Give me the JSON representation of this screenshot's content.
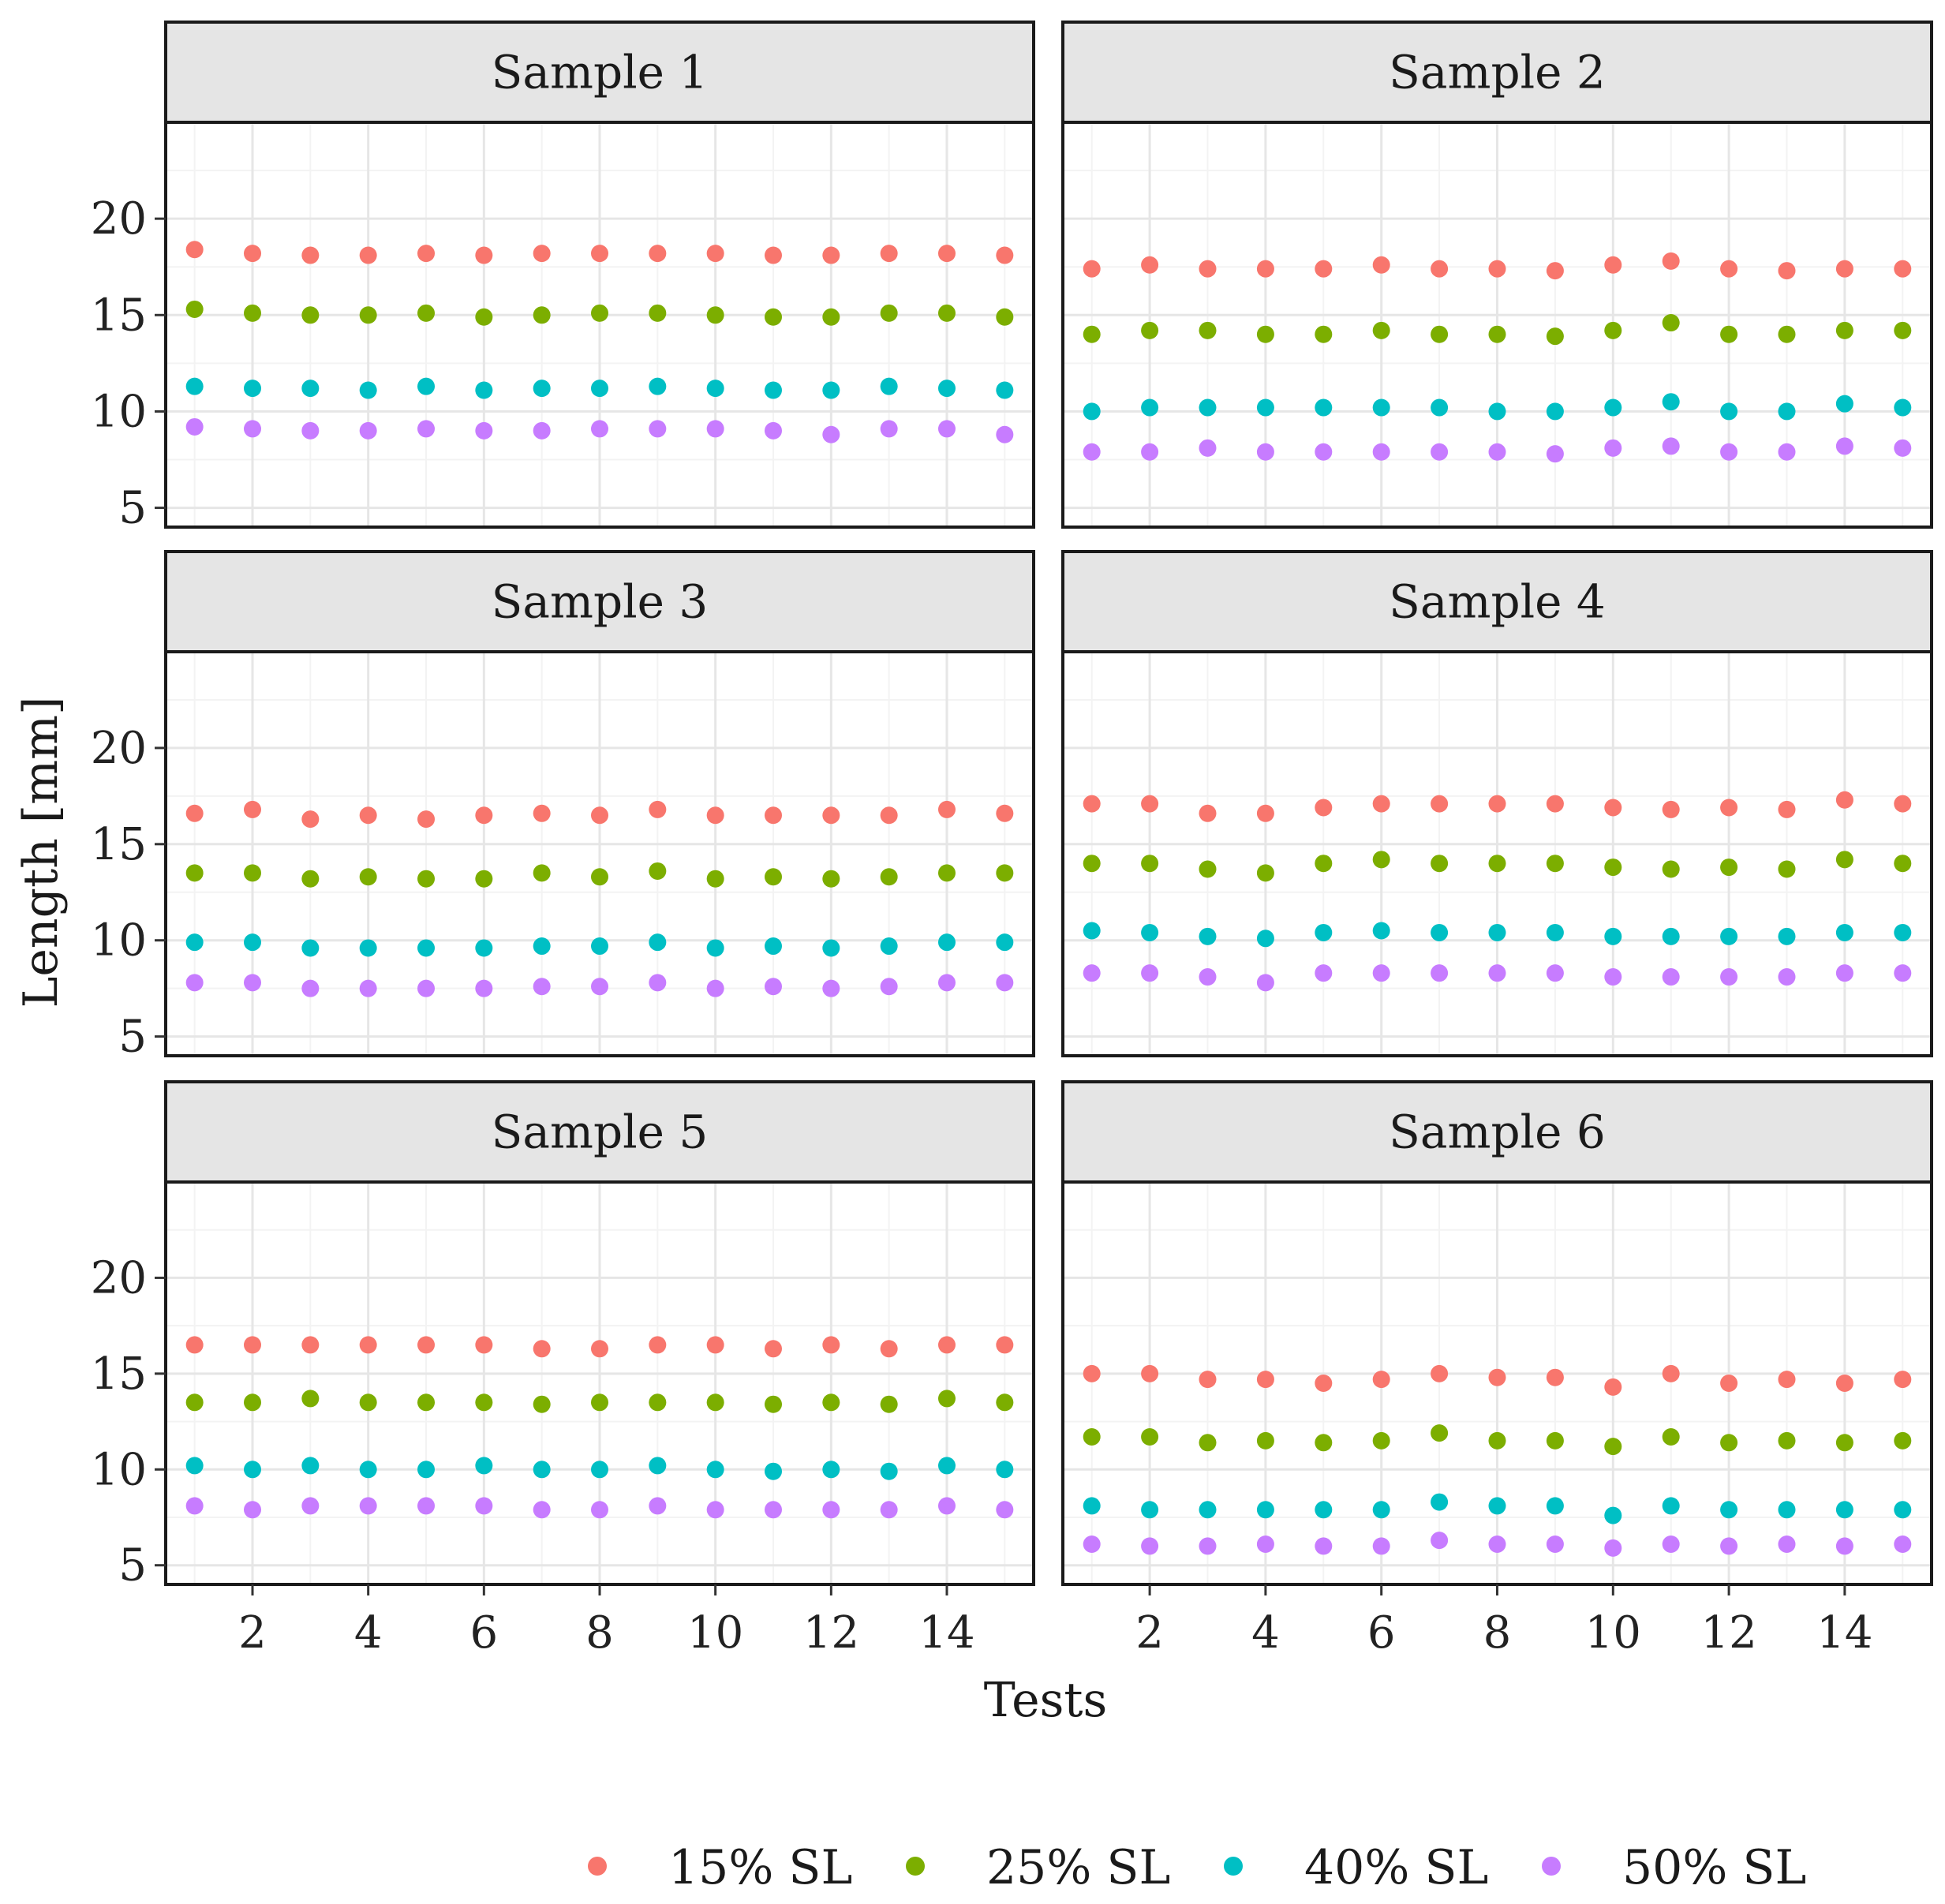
{
  "chart_data": {
    "type": "scatter",
    "layout": "facet-grid-3x2",
    "xlabel": "Tests",
    "ylabel": "Length [mm]",
    "xlim": [
      0.5,
      15.5
    ],
    "ylim": [
      4,
      25
    ],
    "x_ticks": [
      2,
      4,
      6,
      8,
      10,
      12,
      14
    ],
    "y_ticks": [
      5,
      10,
      15,
      20
    ],
    "grid": true,
    "legend_position": "bottom",
    "series_meta": [
      {
        "name": "15% SL",
        "color": "#F8766D"
      },
      {
        "name": "25% SL",
        "color": "#7CAE00"
      },
      {
        "name": "40% SL",
        "color": "#00BFC4"
      },
      {
        "name": "50% SL",
        "color": "#C77CFF"
      }
    ],
    "x": [
      1,
      2,
      3,
      4,
      5,
      6,
      7,
      8,
      9,
      10,
      11,
      12,
      13,
      14,
      15
    ],
    "panels": [
      {
        "title": "Sample 1",
        "series": [
          {
            "name": "15% SL",
            "values": [
              18.4,
              18.2,
              18.1,
              18.1,
              18.2,
              18.1,
              18.2,
              18.2,
              18.2,
              18.2,
              18.1,
              18.1,
              18.2,
              18.2,
              18.1
            ]
          },
          {
            "name": "25% SL",
            "values": [
              15.3,
              15.1,
              15.0,
              15.0,
              15.1,
              14.9,
              15.0,
              15.1,
              15.1,
              15.0,
              14.9,
              14.9,
              15.1,
              15.1,
              14.9
            ]
          },
          {
            "name": "40% SL",
            "values": [
              11.3,
              11.2,
              11.2,
              11.1,
              11.3,
              11.1,
              11.2,
              11.2,
              11.3,
              11.2,
              11.1,
              11.1,
              11.3,
              11.2,
              11.1
            ]
          },
          {
            "name": "50% SL",
            "values": [
              9.2,
              9.1,
              9.0,
              9.0,
              9.1,
              9.0,
              9.0,
              9.1,
              9.1,
              9.1,
              9.0,
              8.8,
              9.1,
              9.1,
              8.8
            ]
          }
        ]
      },
      {
        "title": "Sample 2",
        "series": [
          {
            "name": "15% SL",
            "values": [
              17.4,
              17.6,
              17.4,
              17.4,
              17.4,
              17.6,
              17.4,
              17.4,
              17.3,
              17.6,
              17.8,
              17.4,
              17.3,
              17.4,
              17.4
            ]
          },
          {
            "name": "25% SL",
            "values": [
              14.0,
              14.2,
              14.2,
              14.0,
              14.0,
              14.2,
              14.0,
              14.0,
              13.9,
              14.2,
              14.6,
              14.0,
              14.0,
              14.2,
              14.2
            ]
          },
          {
            "name": "40% SL",
            "values": [
              10.0,
              10.2,
              10.2,
              10.2,
              10.2,
              10.2,
              10.2,
              10.0,
              10.0,
              10.2,
              10.5,
              10.0,
              10.0,
              10.4,
              10.2
            ]
          },
          {
            "name": "50% SL",
            "values": [
              7.9,
              7.9,
              8.1,
              7.9,
              7.9,
              7.9,
              7.9,
              7.9,
              7.8,
              8.1,
              8.2,
              7.9,
              7.9,
              8.2,
              8.1
            ]
          }
        ]
      },
      {
        "title": "Sample 3",
        "series": [
          {
            "name": "15% SL",
            "values": [
              16.6,
              16.8,
              16.3,
              16.5,
              16.3,
              16.5,
              16.6,
              16.5,
              16.8,
              16.5,
              16.5,
              16.5,
              16.5,
              16.8,
              16.6
            ]
          },
          {
            "name": "25% SL",
            "values": [
              13.5,
              13.5,
              13.2,
              13.3,
              13.2,
              13.2,
              13.5,
              13.3,
              13.6,
              13.2,
              13.3,
              13.2,
              13.3,
              13.5,
              13.5
            ]
          },
          {
            "name": "40% SL",
            "values": [
              9.9,
              9.9,
              9.6,
              9.6,
              9.6,
              9.6,
              9.7,
              9.7,
              9.9,
              9.6,
              9.7,
              9.6,
              9.7,
              9.9,
              9.9
            ]
          },
          {
            "name": "50% SL",
            "values": [
              7.8,
              7.8,
              7.5,
              7.5,
              7.5,
              7.5,
              7.6,
              7.6,
              7.8,
              7.5,
              7.6,
              7.5,
              7.6,
              7.8,
              7.8
            ]
          }
        ]
      },
      {
        "title": "Sample 4",
        "series": [
          {
            "name": "15% SL",
            "values": [
              17.1,
              17.1,
              16.6,
              16.6,
              16.9,
              17.1,
              17.1,
              17.1,
              17.1,
              16.9,
              16.8,
              16.9,
              16.8,
              17.3,
              17.1
            ]
          },
          {
            "name": "25% SL",
            "values": [
              14.0,
              14.0,
              13.7,
              13.5,
              14.0,
              14.2,
              14.0,
              14.0,
              14.0,
              13.8,
              13.7,
              13.8,
              13.7,
              14.2,
              14.0
            ]
          },
          {
            "name": "40% SL",
            "values": [
              10.5,
              10.4,
              10.2,
              10.1,
              10.4,
              10.5,
              10.4,
              10.4,
              10.4,
              10.2,
              10.2,
              10.2,
              10.2,
              10.4,
              10.4
            ]
          },
          {
            "name": "50% SL",
            "values": [
              8.3,
              8.3,
              8.1,
              7.8,
              8.3,
              8.3,
              8.3,
              8.3,
              8.3,
              8.1,
              8.1,
              8.1,
              8.1,
              8.3,
              8.3
            ]
          }
        ]
      },
      {
        "title": "Sample 5",
        "series": [
          {
            "name": "15% SL",
            "values": [
              16.5,
              16.5,
              16.5,
              16.5,
              16.5,
              16.5,
              16.3,
              16.3,
              16.5,
              16.5,
              16.3,
              16.5,
              16.3,
              16.5,
              16.5
            ]
          },
          {
            "name": "25% SL",
            "values": [
              13.5,
              13.5,
              13.7,
              13.5,
              13.5,
              13.5,
              13.4,
              13.5,
              13.5,
              13.5,
              13.4,
              13.5,
              13.4,
              13.7,
              13.5
            ]
          },
          {
            "name": "40% SL",
            "values": [
              10.2,
              10.0,
              10.2,
              10.0,
              10.0,
              10.2,
              10.0,
              10.0,
              10.2,
              10.0,
              9.9,
              10.0,
              9.9,
              10.2,
              10.0
            ]
          },
          {
            "name": "50% SL",
            "values": [
              8.1,
              7.9,
              8.1,
              8.1,
              8.1,
              8.1,
              7.9,
              7.9,
              8.1,
              7.9,
              7.9,
              7.9,
              7.9,
              8.1,
              7.9
            ]
          }
        ]
      },
      {
        "title": "Sample 6",
        "series": [
          {
            "name": "15% SL",
            "values": [
              15.0,
              15.0,
              14.7,
              14.7,
              14.5,
              14.7,
              15.0,
              14.8,
              14.8,
              14.3,
              15.0,
              14.5,
              14.7,
              14.5,
              14.7
            ]
          },
          {
            "name": "25% SL",
            "values": [
              11.7,
              11.7,
              11.4,
              11.5,
              11.4,
              11.5,
              11.9,
              11.5,
              11.5,
              11.2,
              11.7,
              11.4,
              11.5,
              11.4,
              11.5
            ]
          },
          {
            "name": "40% SL",
            "values": [
              8.1,
              7.9,
              7.9,
              7.9,
              7.9,
              7.9,
              8.3,
              8.1,
              8.1,
              7.6,
              8.1,
              7.9,
              7.9,
              7.9,
              7.9
            ]
          },
          {
            "name": "50% SL",
            "values": [
              6.1,
              6.0,
              6.0,
              6.1,
              6.0,
              6.0,
              6.3,
              6.1,
              6.1,
              5.9,
              6.1,
              6.0,
              6.1,
              6.0,
              6.1
            ]
          }
        ]
      }
    ]
  }
}
